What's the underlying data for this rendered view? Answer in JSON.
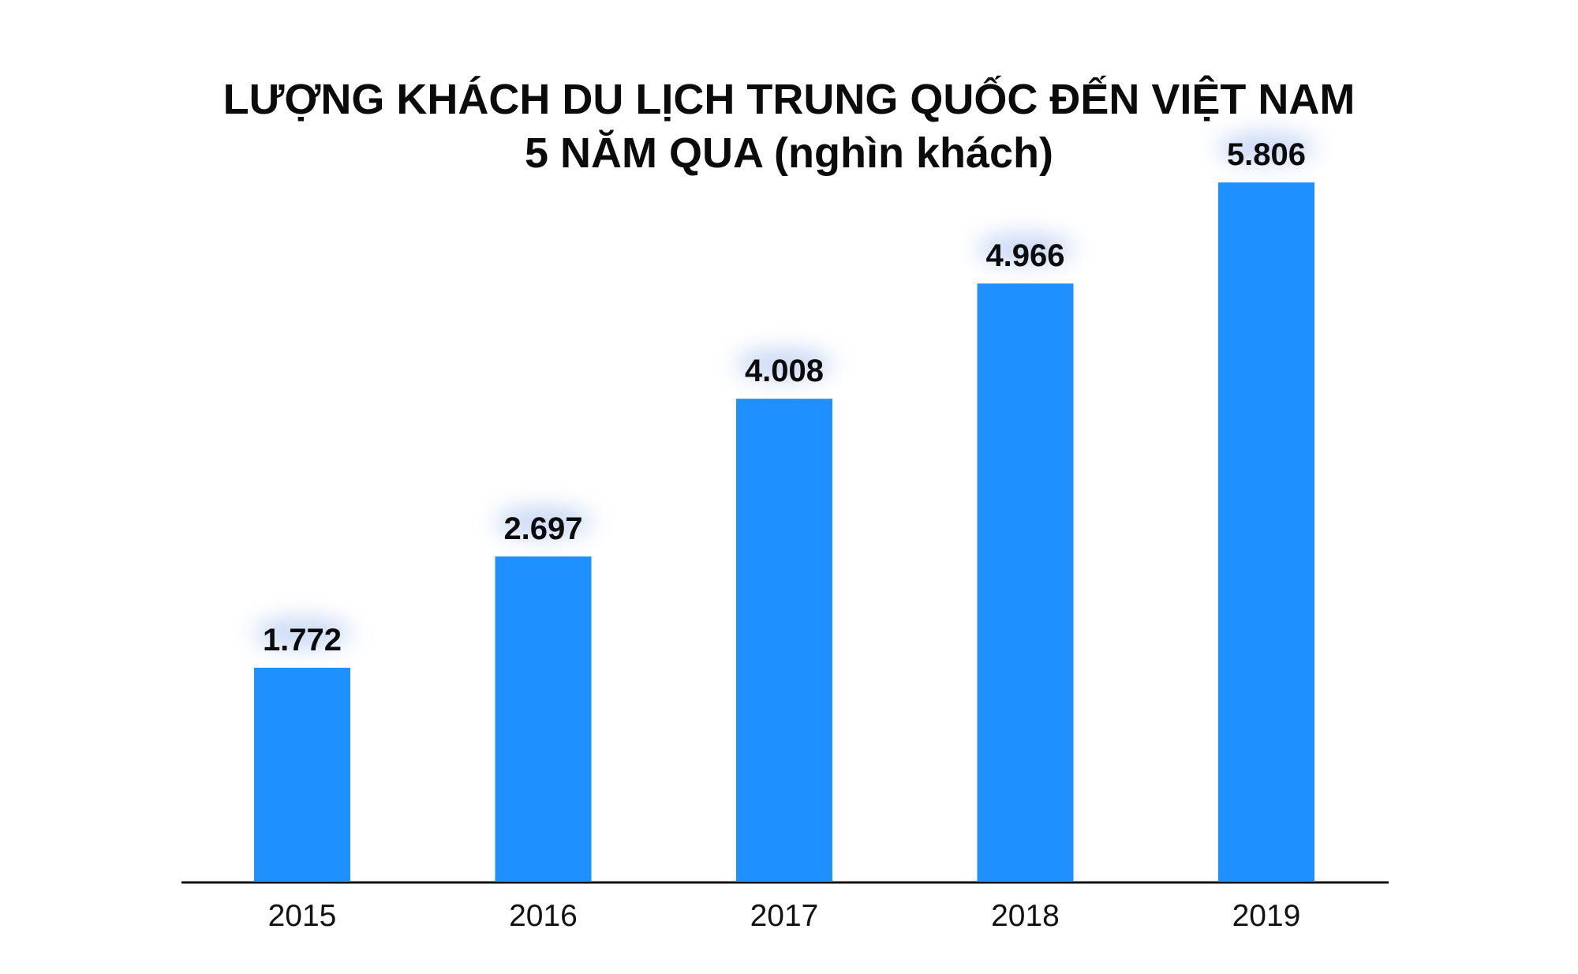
{
  "chart_data": {
    "type": "bar",
    "title": "LƯỢNG KHÁCH DU LỊCH TRUNG QUỐC ĐẾN VIỆT NAM",
    "subtitle": "5 NĂM QUA (nghìn khách)",
    "categories": [
      "2015",
      "2016",
      "2017",
      "2018",
      "2019"
    ],
    "values": [
      1772,
      2697,
      4008,
      4966,
      5806
    ],
    "value_labels": [
      "1.772",
      "2.697",
      "4.008",
      "4.966",
      "5.806"
    ],
    "xlabel": "",
    "ylabel": "",
    "ylim": [
      0,
      6000
    ],
    "grid": false,
    "legend": "none",
    "bar_color": "#1e90ff",
    "axis_color": "#111111"
  }
}
